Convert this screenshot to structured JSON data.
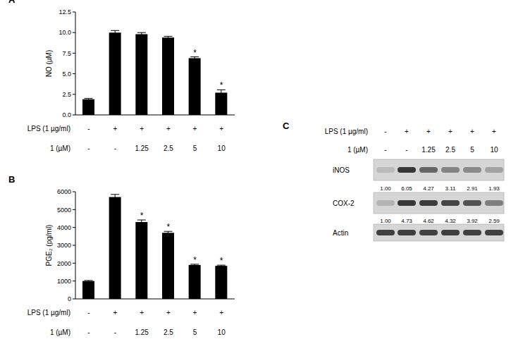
{
  "chart_data": [
    {
      "type": "bar",
      "panel_label": "A",
      "ylabel": "NO (µM)",
      "x_rows": [
        {
          "label": "LPS (1 µg/ml)",
          "values": [
            "-",
            "+",
            "+",
            "+",
            "+",
            "+"
          ]
        },
        {
          "label": "1 (µM)",
          "values": [
            "-",
            "-",
            "1.25",
            "2.5",
            "5",
            "10"
          ]
        }
      ],
      "values": [
        1.9,
        10.0,
        9.8,
        9.4,
        6.9,
        2.7
      ],
      "errors": [
        0.1,
        0.25,
        0.2,
        0.15,
        0.15,
        0.35
      ],
      "color": "#000000",
      "ylim": [
        0,
        12.5
      ],
      "yticks": [
        {
          "value": 0,
          "label": "0.0"
        },
        2.5,
        {
          "value": 5,
          "label": "5.0"
        },
        7.5,
        {
          "value": 10,
          "label": "10.0"
        },
        12.5
      ],
      "annotations": [
        {
          "index": 4,
          "text": "*"
        },
        {
          "index": 5,
          "text": "*"
        }
      ]
    },
    {
      "type": "bar",
      "panel_label": "B",
      "ylabel": "PGE₂ (pg/ml)",
      "x_rows": [
        {
          "label": "LPS (1 µg/ml)",
          "values": [
            "-",
            "+",
            "+",
            "+",
            "+",
            "+"
          ]
        },
        {
          "label": "1 (µM)",
          "values": [
            "-",
            "-",
            "1.25",
            "2.5",
            "5",
            "10"
          ]
        }
      ],
      "values": [
        1000,
        5700,
        4300,
        3700,
        1900,
        1850
      ],
      "errors": [
        30,
        150,
        120,
        80,
        40,
        40
      ],
      "color": "#000000",
      "ylim": [
        0,
        6000
      ],
      "yticks": [
        0,
        1000,
        2000,
        3000,
        4000,
        5000,
        6000
      ],
      "annotations": [
        {
          "index": 2,
          "text": "*"
        },
        {
          "index": 3,
          "text": "*"
        },
        {
          "index": 4,
          "text": "*"
        },
        {
          "index": 5,
          "text": "*"
        }
      ]
    }
  ],
  "blot": {
    "panel_label": "C",
    "header_rows": [
      {
        "label": "LPS (1 µg/ml)",
        "values": [
          "-",
          "+",
          "+",
          "+",
          "+",
          "+"
        ]
      },
      {
        "label": "1 (µM)",
        "values": [
          "-",
          "-",
          "1.25",
          "2.5",
          "5",
          "10"
        ]
      }
    ],
    "bands": [
      {
        "label": "iNOS",
        "values": [
          "1.00",
          "6.05",
          "4.27",
          "3.11",
          "2.91",
          "1.93"
        ]
      },
      {
        "label": "COX-2",
        "values": [
          "1.00",
          "4.73",
          "4.62",
          "4.32",
          "3.92",
          "2.59"
        ]
      },
      {
        "label": "Actin"
      }
    ]
  }
}
